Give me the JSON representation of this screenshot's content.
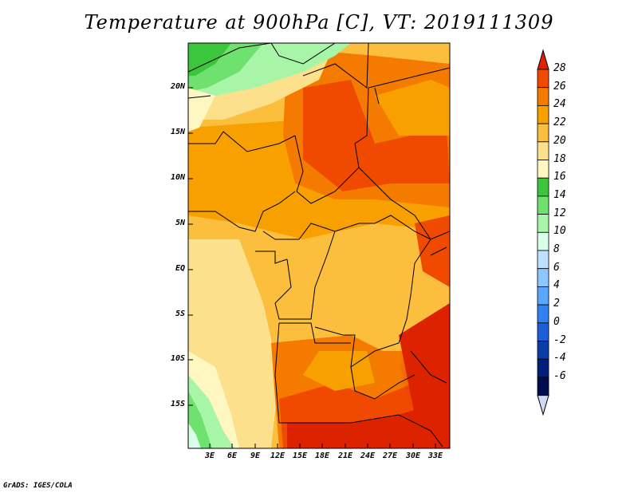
{
  "title": "Temperature at 900hPa [C], VT: 2019111309",
  "credit": "GrADS: IGES/COLA",
  "map": {
    "lat_labels": [
      "20N",
      "15N",
      "10N",
      "5N",
      "EQ",
      "5S",
      "10S",
      "15S"
    ],
    "lat_values": [
      20,
      15,
      10,
      5,
      0,
      -5,
      -10,
      -15
    ],
    "lon_labels": [
      "3E",
      "6E",
      "9E",
      "12E",
      "15E",
      "18E",
      "21E",
      "24E",
      "27E",
      "30E",
      "33E"
    ],
    "lon_values": [
      3,
      6,
      9,
      12,
      15,
      18,
      21,
      24,
      27,
      30,
      33
    ],
    "extent": {
      "lon": [
        0.3,
        34.8
      ],
      "lat": [
        -19.5,
        24.5
      ]
    }
  },
  "colorbar": {
    "labels": [
      "28",
      "26",
      "24",
      "22",
      "20",
      "18",
      "16",
      "14",
      "12",
      "10",
      "8",
      "6",
      "4",
      "2",
      "0",
      "-2",
      "-4",
      "-6"
    ],
    "colors": [
      "#dd2200",
      "#f04a00",
      "#f57a00",
      "#f8a000",
      "#fbbf3d",
      "#fde08b",
      "#fff7c2",
      "#3cc63c",
      "#6ee16e",
      "#a8f5a8",
      "#d9ffe9",
      "#bde0ff",
      "#8dc7ff",
      "#5ba6ff",
      "#2f82f0",
      "#1a5fd6",
      "#0a3ea6",
      "#001f7a",
      "#000c4d"
    ],
    "bottom_arrow_color": "#d0d8f5"
  }
}
